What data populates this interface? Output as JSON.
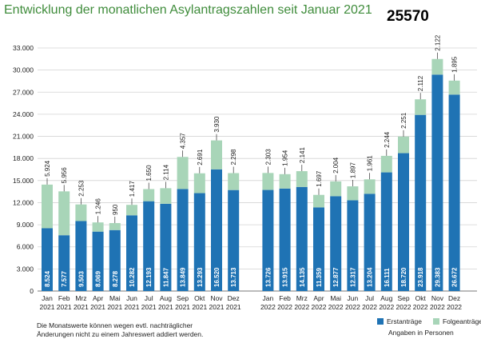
{
  "title": "Entwicklung der monatlichen Asylantragszahlen seit Januar 2021",
  "code_label": "25570",
  "footnote": "Die Monatswerte können wegen evtl. nachträglicher Änderungen nicht zu einem Jahreswert addiert werden.",
  "unit_note": "Angaben in Personen",
  "colors": {
    "erst": "#1f73b4",
    "folge": "#a8d5b8",
    "grid": "#d4d4d4",
    "title": "#3f8c3b"
  },
  "chart_data": {
    "type": "bar",
    "stacked": true,
    "categories": [
      [
        "Jan",
        "2021"
      ],
      [
        "Feb",
        "2021"
      ],
      [
        "Mrz",
        "2021"
      ],
      [
        "Apr",
        "2021"
      ],
      [
        "Mai",
        "2021"
      ],
      [
        "Jun",
        "2021"
      ],
      [
        "Jul",
        "2021"
      ],
      [
        "Aug",
        "2021"
      ],
      [
        "Sep",
        "2021"
      ],
      [
        "Okt",
        "2021"
      ],
      [
        "Nov",
        "2021"
      ],
      [
        "Dez",
        "2021"
      ],
      [
        "Jan",
        "2022"
      ],
      [
        "Feb",
        "2022"
      ],
      [
        "Mrz",
        "2022"
      ],
      [
        "Apr",
        "2022"
      ],
      [
        "Mai",
        "2022"
      ],
      [
        "Jun",
        "2022"
      ],
      [
        "Jul",
        "2022"
      ],
      [
        "Aug",
        "2022"
      ],
      [
        "Sep",
        "2022"
      ],
      [
        "Okt",
        "2022"
      ],
      [
        "Nov",
        "2022"
      ],
      [
        "Dez",
        "2022"
      ]
    ],
    "series": [
      {
        "name": "Erstanträge",
        "values": [
          8524,
          7577,
          9503,
          8069,
          8278,
          10282,
          12193,
          11847,
          13849,
          13293,
          16520,
          13713,
          13726,
          13915,
          14135,
          11359,
          12877,
          12317,
          13204,
          16111,
          18720,
          23918,
          29383,
          26672
        ],
        "labels": [
          "8.524",
          "7.577",
          "9.503",
          "8.069",
          "8.278",
          "10.282",
          "12.193",
          "11.847",
          "13.849",
          "13.293",
          "16.520",
          "13.713",
          "13.726",
          "13.915",
          "14.135",
          "11.359",
          "12.877",
          "12.317",
          "13.204",
          "16.111",
          "18.720",
          "23.918",
          "29.383",
          "26.672"
        ]
      },
      {
        "name": "Folgeanträge",
        "values": [
          5924,
          5956,
          2253,
          1246,
          950,
          1417,
          1650,
          2114,
          4357,
          2691,
          3930,
          2298,
          2303,
          1954,
          2141,
          1697,
          2004,
          1897,
          1961,
          2244,
          2251,
          2112,
          2122,
          1895
        ],
        "labels": [
          "5.924",
          "5.956",
          "2.253",
          "1.246",
          "950",
          "1.417",
          "1.650",
          "2.114",
          "4.357",
          "2.691",
          "3.930",
          "2.298",
          "2.303",
          "1.954",
          "2.141",
          "1.697",
          "2.004",
          "1.897",
          "1.961",
          "2.244",
          "2.251",
          "2.112",
          "2.122",
          "1.895"
        ]
      }
    ],
    "ylim": [
      0,
      33000
    ],
    "yticks": [
      0,
      3000,
      6000,
      9000,
      12000,
      15000,
      18000,
      21000,
      24000,
      27000,
      30000,
      33000
    ],
    "ytick_labels": [
      "0",
      "3.000",
      "6.000",
      "9.000",
      "12.000",
      "15.000",
      "18.000",
      "21.000",
      "24.000",
      "27.000",
      "30.000",
      "33.000"
    ],
    "grid": true,
    "legend": "bottom-right"
  }
}
